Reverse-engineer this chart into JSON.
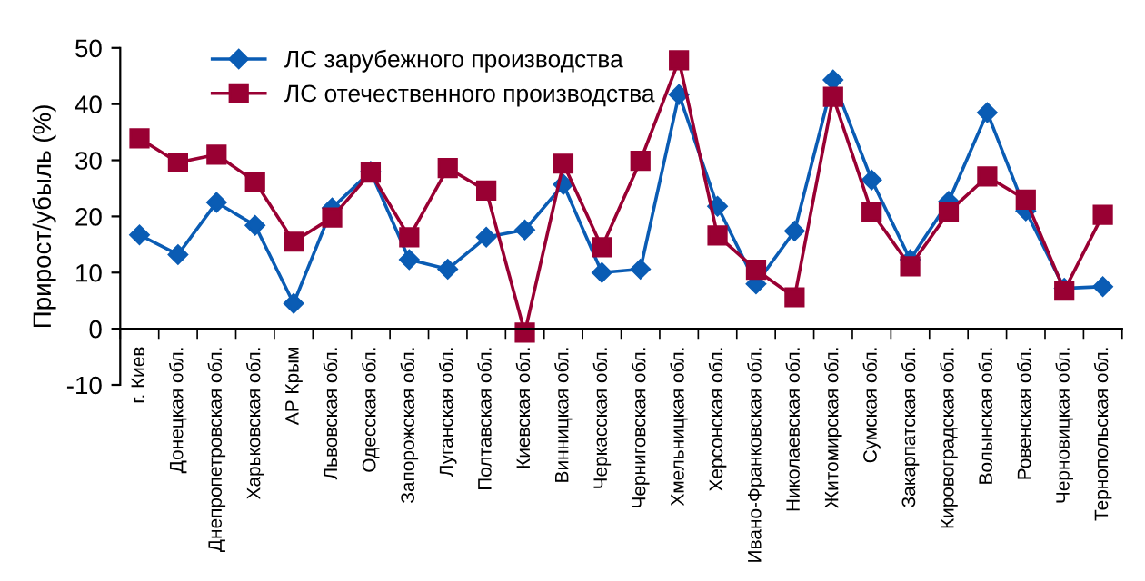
{
  "chart_data": {
    "type": "line",
    "ylabel": "Прирост/убыль (%)",
    "categories": [
      "г. Киев",
      "Донецкая обл.",
      "Днепропетровская обл.",
      "Харьковская обл.",
      "АР Крым",
      "Львовская обл.",
      "Одесская обл.",
      "Запорожская обл.",
      "Луганская обл.",
      "Полтавская обл.",
      "Киевская обл.",
      "Винницкая обл.",
      "Черкасская обл.",
      "Черниговская обл.",
      "Хмельницкая обл.",
      "Херсонская обл.",
      "Ивано-Франковская обл.",
      "Николаевская обл.",
      "Житомирская обл.",
      "Сумская обл.",
      "Закарпатская обл.",
      "Кировоградская обл.",
      "Волынская обл.",
      "Ровенская обл.",
      "Черновицкая обл.",
      "Тернопольская обл."
    ],
    "series": [
      {
        "name": "ЛС зарубежного производства",
        "color": "#0a5cb4",
        "marker": "diamond",
        "values": [
          16.7,
          13.2,
          22.5,
          18.4,
          4.5,
          21.5,
          28,
          12.3,
          10.6,
          16.3,
          17.6,
          25.7,
          10,
          10.6,
          41.7,
          21.8,
          8,
          17.4,
          44.3,
          26.5,
          12.3,
          22.7,
          38.5,
          21,
          7.2,
          7.5
        ]
      },
      {
        "name": "ЛС отечественного производства",
        "color": "#990033",
        "marker": "square",
        "values": [
          33.9,
          29.6,
          31,
          26.2,
          15.5,
          19.8,
          27.8,
          16.3,
          28.6,
          24.6,
          -0.7,
          29.4,
          14.5,
          29.9,
          47.8,
          16.6,
          10.5,
          5.6,
          41.3,
          20.8,
          11.1,
          20.8,
          27.1,
          23,
          6.8,
          20.3
        ]
      }
    ],
    "ylim": [
      -10,
      50
    ],
    "yticks": [
      {
        "value": -10,
        "label": "-10"
      },
      0,
      10,
      20,
      30,
      40,
      50
    ],
    "grid": false,
    "legend": "top left"
  }
}
